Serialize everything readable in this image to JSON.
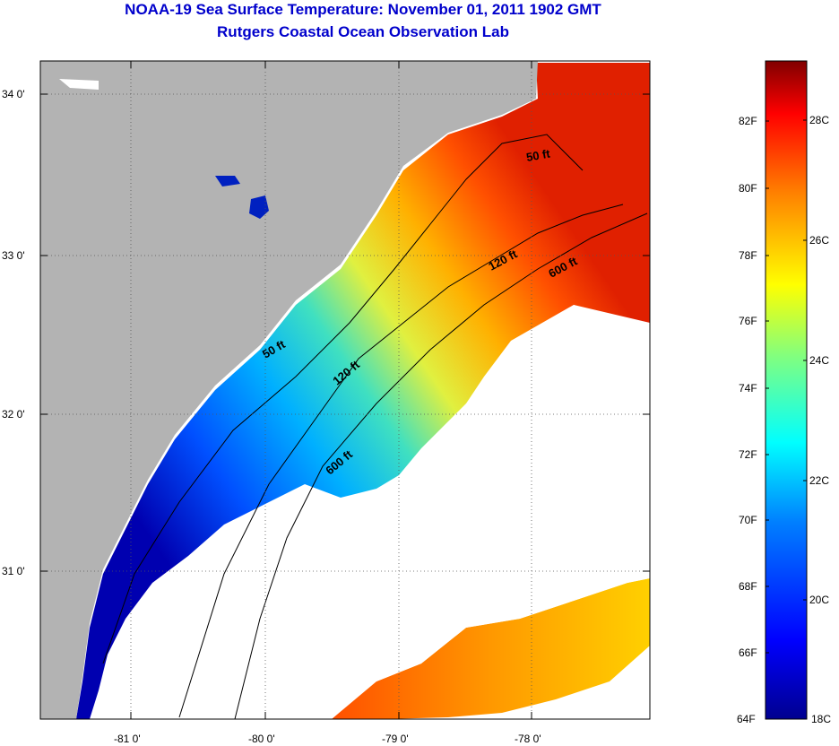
{
  "title": "NOAA-19 Sea Surface Temperature:  November 01, 2011 1902 GMT",
  "subtitle": "Rutgers Coastal Ocean Observation Lab",
  "lat_labels": [
    "34 0'",
    "33 0'",
    "32 0'",
    "31 0'"
  ],
  "lon_labels": [
    "-81 0'",
    "-80 0'",
    "-79 0'",
    "-78 0'"
  ],
  "contour_labels": [
    "50 ft",
    "120 ft",
    "600 ft",
    "50 ft",
    "120 ft",
    "600 ft"
  ],
  "colorbar": {
    "fahrenheit_labels": [
      "82F",
      "80F",
      "78F",
      "76F",
      "74F",
      "72F",
      "70F",
      "68F",
      "66F",
      "64F"
    ],
    "celsius_labels": [
      "28C",
      "26C",
      "24C",
      "22C",
      "20C",
      "18C"
    ],
    "colors": [
      "#00008f",
      "#0000ff",
      "#0080ff",
      "#00ffff",
      "#80ff80",
      "#ffff00",
      "#ff8000",
      "#ff0000",
      "#800000"
    ]
  },
  "colors": {
    "land": "#b3b3b3",
    "water_cold": "#0000cc",
    "water_warm": "#ff4000"
  }
}
